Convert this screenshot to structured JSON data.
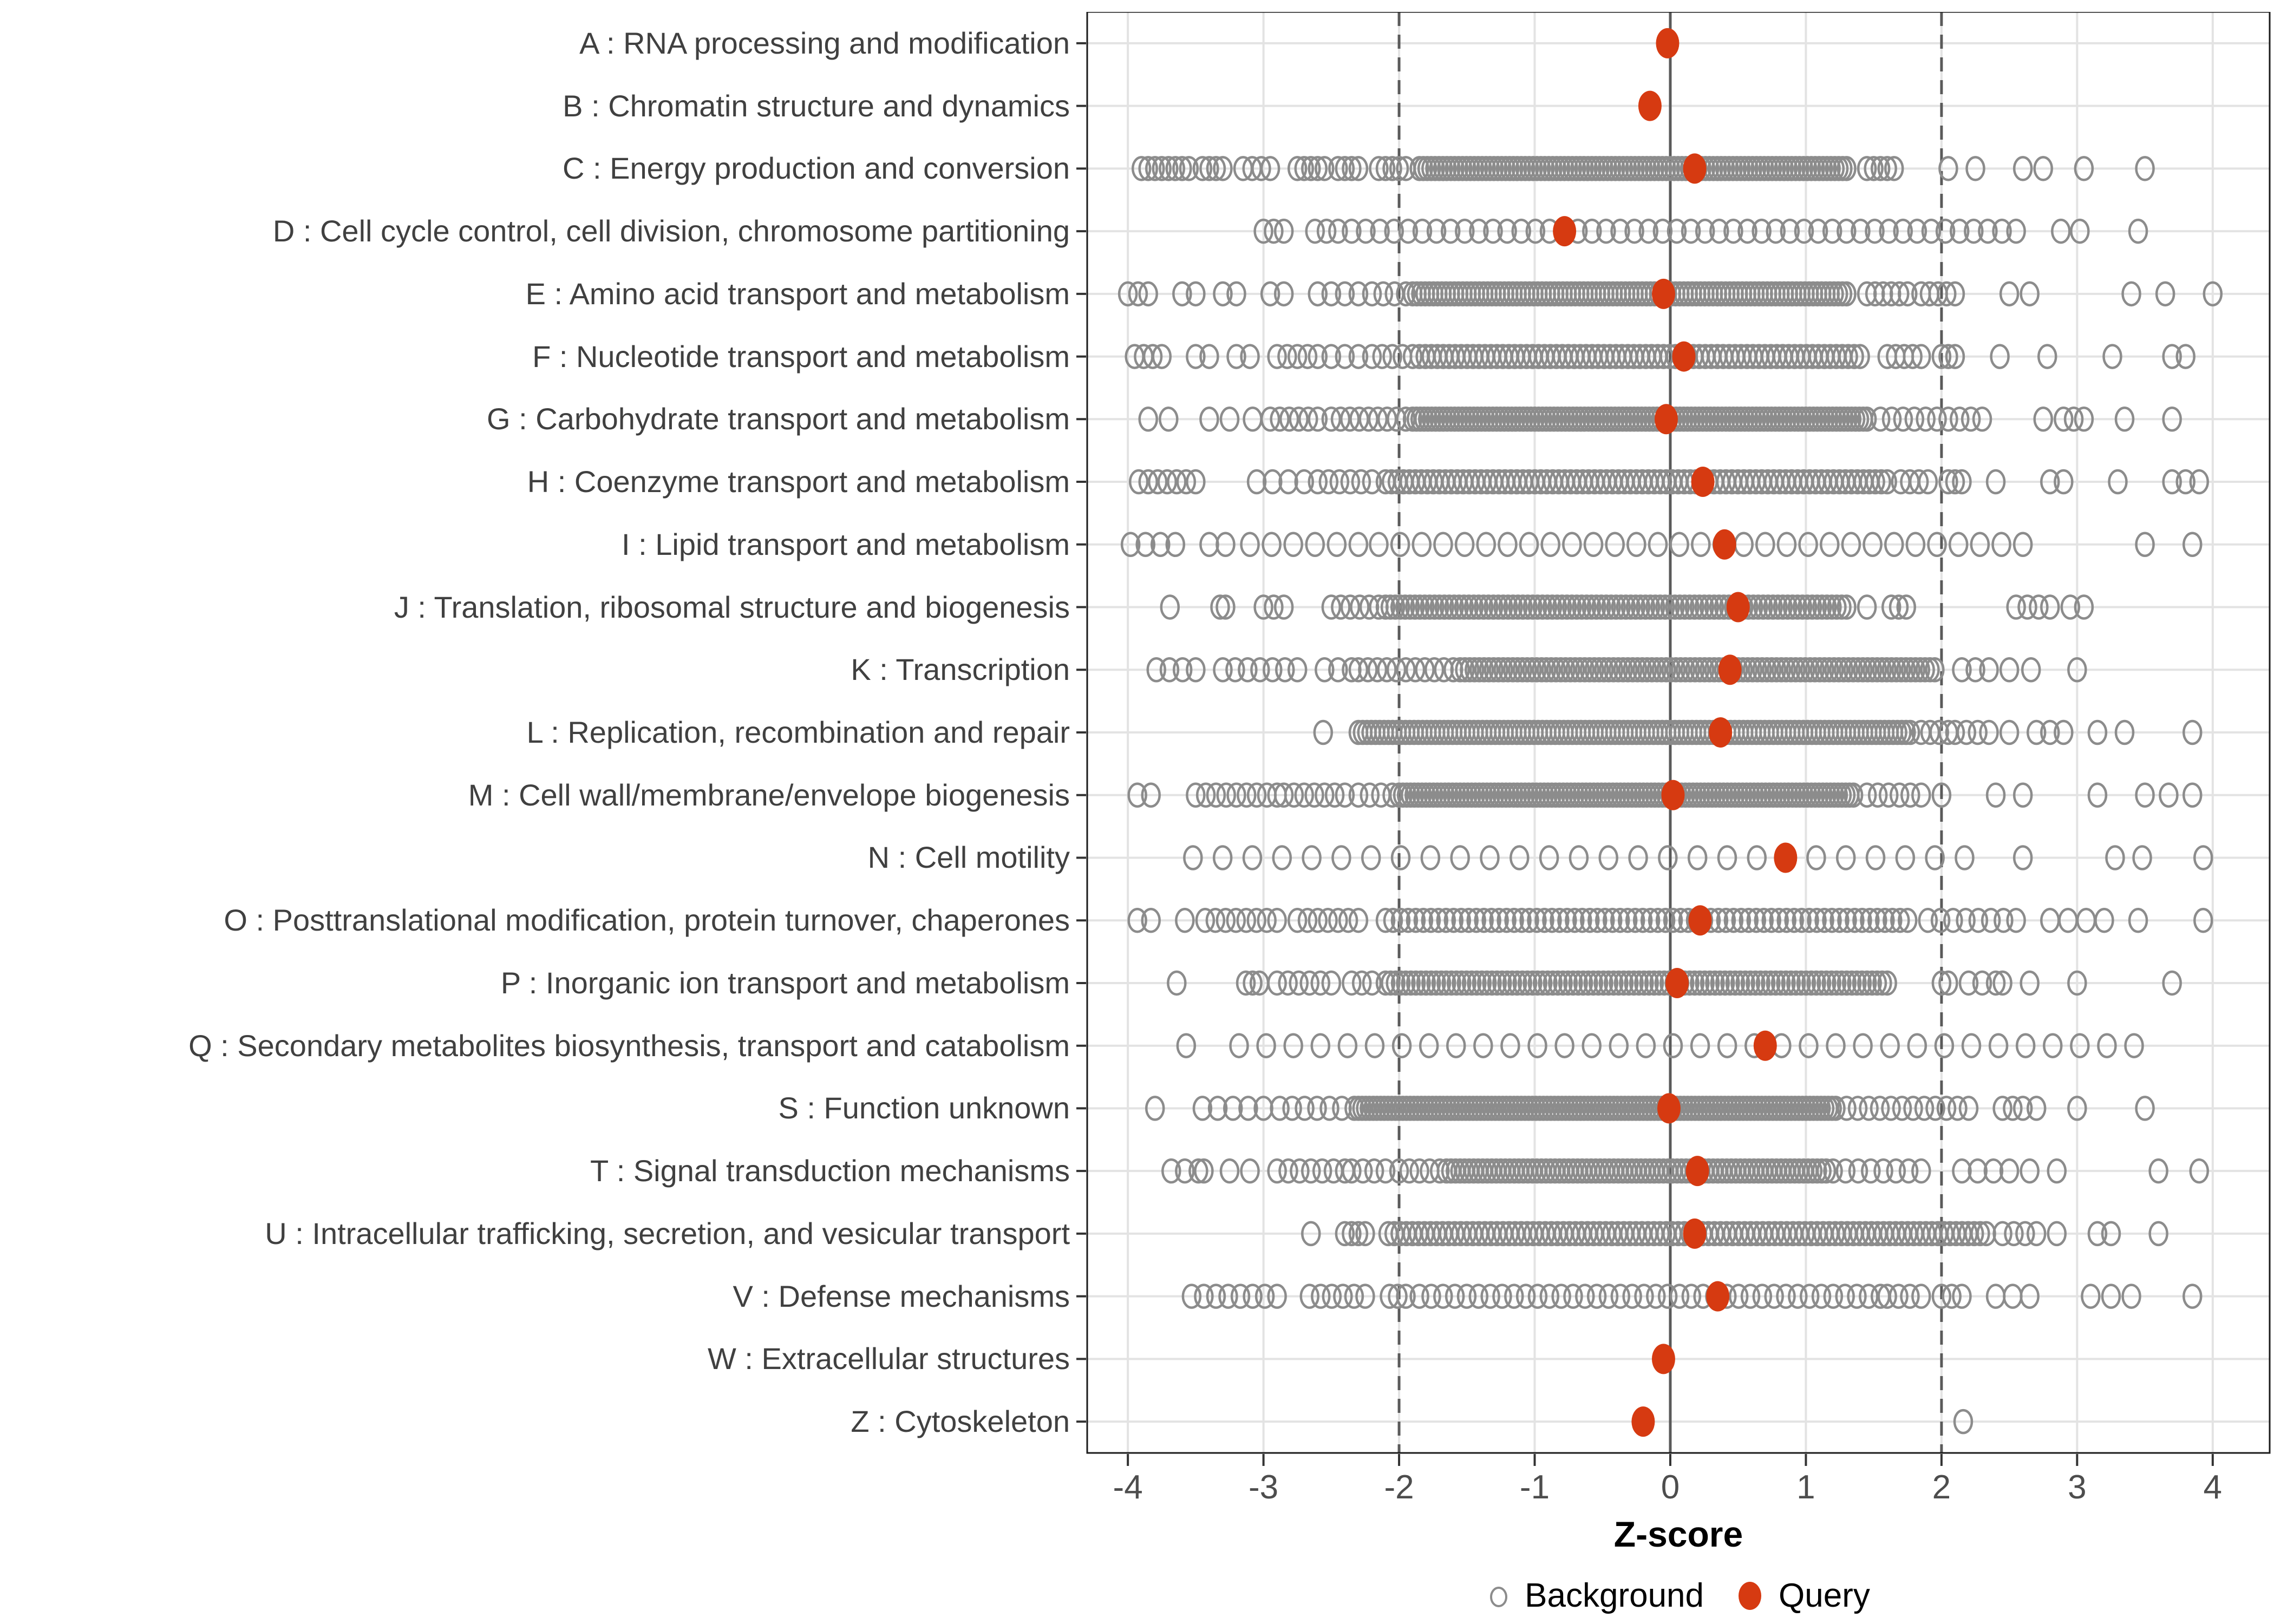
{
  "chart_data": {
    "type": "scatter",
    "title": "",
    "xlabel": "Z-score",
    "x_ticks": [
      -4,
      -3,
      -2,
      -1,
      0,
      1,
      2,
      3,
      4
    ],
    "x_range": [
      -4.3,
      4.42
    ],
    "grid": "on",
    "reference_lines": [
      {
        "x": 0,
        "style": "solid"
      },
      {
        "x": -2,
        "style": "dashed"
      },
      {
        "x": 2,
        "style": "dashed"
      }
    ],
    "legend": {
      "position": "bottom",
      "items": [
        {
          "label": "Background",
          "marker": "open-circle"
        },
        {
          "label": "Query",
          "marker": "filled-circle"
        }
      ]
    },
    "colors": {
      "query": "#D63A11",
      "background_stroke": "#8C8C8C",
      "grid": "#E3E3E3",
      "reference": "#5A5A5A",
      "axis_text": "#4D4D4D",
      "label_text": "#404040",
      "panel_border": "#1A1A1A"
    },
    "series": [
      {
        "name": "Background",
        "marker": "open-circle"
      },
      {
        "name": "Query",
        "marker": "filled-circle"
      }
    ],
    "categories": [
      {
        "label": "A : RNA processing and modification",
        "query": -0.02,
        "bg": []
      },
      {
        "label": "B : Chromatin structure and dynamics",
        "query": -0.15,
        "bg": []
      },
      {
        "label": "C : Energy production and conversion",
        "query": 0.18,
        "bg": [
          [
            -3.9,
            -3.55,
            8
          ],
          [
            -3.45,
            -3.3,
            4
          ],
          [
            -3.15,
            -2.95,
            4
          ],
          [
            -2.75,
            -2.55,
            5
          ],
          [
            -2.45,
            -2.3,
            4
          ],
          [
            -2.15,
            -1.95,
            5
          ],
          [
            -1.85,
            1.3,
            110
          ],
          [
            1.45,
            1.65,
            5
          ],
          [
            2.05,
            2.05,
            1
          ],
          [
            2.25,
            2.25,
            1
          ],
          [
            2.6,
            2.75,
            2
          ],
          [
            3.05,
            3.05,
            1
          ],
          [
            3.5,
            3.5,
            1
          ]
        ]
      },
      {
        "label": "D : Cell cycle control, cell division, chromosome partitioning",
        "query": -0.78,
        "bg": [
          [
            -3.0,
            -2.85,
            3
          ],
          [
            -2.62,
            -2.45,
            3
          ],
          [
            -2.35,
            2.55,
            48
          ],
          [
            2.88,
            2.88,
            1
          ],
          [
            3.02,
            3.02,
            1
          ],
          [
            3.45,
            3.45,
            1
          ]
        ]
      },
      {
        "label": "E : Amino acid transport and metabolism",
        "query": -0.05,
        "bg": [
          [
            -4.0,
            -3.85,
            3
          ],
          [
            -3.6,
            -3.5,
            2
          ],
          [
            -3.3,
            -3.2,
            2
          ],
          [
            -2.95,
            -2.85,
            2
          ],
          [
            -2.6,
            -2.3,
            4
          ],
          [
            -2.2,
            -1.95,
            4
          ],
          [
            -1.9,
            1.3,
            105
          ],
          [
            1.45,
            1.75,
            6
          ],
          [
            1.85,
            2.1,
            5
          ],
          [
            2.5,
            2.65,
            2
          ],
          [
            3.4,
            3.4,
            1
          ],
          [
            3.65,
            3.65,
            1
          ],
          [
            4.0,
            4.0,
            1
          ]
        ]
      },
      {
        "label": "F : Nucleotide transport and metabolism",
        "query": 0.1,
        "bg": [
          [
            -3.95,
            -3.75,
            4
          ],
          [
            -3.5,
            -3.4,
            2
          ],
          [
            -3.2,
            -3.1,
            2
          ],
          [
            -2.9,
            -2.6,
            5
          ],
          [
            -2.5,
            -2.3,
            3
          ],
          [
            -2.2,
            -1.9,
            5
          ],
          [
            -1.85,
            1.4,
            75
          ],
          [
            1.6,
            1.85,
            5
          ],
          [
            2.0,
            2.1,
            3
          ],
          [
            2.43,
            2.43,
            1
          ],
          [
            2.78,
            2.78,
            1
          ],
          [
            3.26,
            3.26,
            1
          ],
          [
            3.7,
            3.8,
            2
          ]
        ]
      },
      {
        "label": "G : Carbohydrate transport and metabolism",
        "query": -0.03,
        "bg": [
          [
            -3.85,
            -3.7,
            2
          ],
          [
            -3.4,
            -3.25,
            2
          ],
          [
            -3.08,
            -3.08,
            1
          ],
          [
            -2.95,
            -2.6,
            6
          ],
          [
            -2.5,
            -1.95,
            9
          ],
          [
            -1.9,
            1.45,
            120
          ],
          [
            1.55,
            2.3,
            10
          ],
          [
            2.75,
            2.75,
            1
          ],
          [
            2.9,
            3.05,
            3
          ],
          [
            3.35,
            3.35,
            1
          ],
          [
            3.7,
            3.7,
            1
          ]
        ]
      },
      {
        "label": "H : Coenzyme transport and metabolism",
        "query": 0.24,
        "bg": [
          [
            -3.92,
            -3.5,
            7
          ],
          [
            -3.05,
            -2.7,
            4
          ],
          [
            -2.6,
            -2.2,
            6
          ],
          [
            -2.1,
            1.6,
            85
          ],
          [
            1.7,
            1.9,
            4
          ],
          [
            2.05,
            2.15,
            3
          ],
          [
            2.4,
            2.4,
            1
          ],
          [
            2.8,
            2.9,
            2
          ],
          [
            3.3,
            3.3,
            1
          ],
          [
            3.7,
            3.9,
            3
          ]
        ]
      },
      {
        "label": "I : Lipid transport and metabolism",
        "query": 0.4,
        "bg": [
          [
            -3.98,
            -3.65,
            4
          ],
          [
            -3.4,
            -3.28,
            2
          ],
          [
            -3.1,
            -2.3,
            6
          ],
          [
            -2.15,
            2.6,
            31
          ],
          [
            3.5,
            3.5,
            1
          ],
          [
            3.85,
            3.85,
            1
          ]
        ]
      },
      {
        "label": "J : Translation, ribosomal structure and biogenesis",
        "query": 0.5,
        "bg": [
          [
            -3.69,
            -3.69,
            1
          ],
          [
            -3.32,
            -3.28,
            2
          ],
          [
            -3.0,
            -2.85,
            3
          ],
          [
            -2.5,
            -2.15,
            6
          ],
          [
            -2.1,
            1.3,
            95
          ],
          [
            1.45,
            1.45,
            1
          ],
          [
            1.63,
            1.74,
            3
          ],
          [
            2.55,
            2.8,
            4
          ],
          [
            2.95,
            3.05,
            2
          ]
        ]
      },
      {
        "label": "K : Transcription",
        "query": 0.44,
        "bg": [
          [
            -3.79,
            -3.5,
            4
          ],
          [
            -3.3,
            -2.75,
            7
          ],
          [
            -2.55,
            -2.35,
            3
          ],
          [
            -2.3,
            -1.6,
            11
          ],
          [
            -1.55,
            1.95,
            100
          ],
          [
            2.15,
            2.35,
            3
          ],
          [
            2.5,
            2.66,
            2
          ],
          [
            3.0,
            3.0,
            1
          ]
        ]
      },
      {
        "label": "L : Replication, recombination and repair",
        "query": 0.37,
        "bg": [
          [
            -2.56,
            -2.56,
            1
          ],
          [
            -2.3,
            1.77,
            130
          ],
          [
            1.85,
            2.05,
            4
          ],
          [
            2.1,
            2.35,
            4
          ],
          [
            2.5,
            2.5,
            1
          ],
          [
            2.7,
            2.9,
            3
          ],
          [
            3.15,
            3.35,
            2
          ],
          [
            3.85,
            3.85,
            1
          ]
        ]
      },
      {
        "label": "M : Cell wall/membrane/envelope biogenesis",
        "query": 0.02,
        "bg": [
          [
            -3.93,
            -3.83,
            2
          ],
          [
            -3.5,
            -2.9,
            9
          ],
          [
            -2.85,
            -2.4,
            7
          ],
          [
            -2.3,
            -2.05,
            4
          ],
          [
            -2.0,
            1.35,
            120
          ],
          [
            1.45,
            1.85,
            6
          ],
          [
            2.0,
            2.0,
            1
          ],
          [
            2.4,
            2.6,
            2
          ],
          [
            3.15,
            3.15,
            1
          ],
          [
            3.5,
            3.85,
            3
          ]
        ]
      },
      {
        "label": "N : Cell motility",
        "query": 0.85,
        "bg": [
          [
            -3.52,
            2.17,
            27
          ],
          [
            2.6,
            2.6,
            1
          ],
          [
            3.28,
            3.48,
            2
          ],
          [
            3.93,
            3.93,
            1
          ]
        ]
      },
      {
        "label": "O : Posttranslational modification, protein turnover, chaperones",
        "query": 0.22,
        "bg": [
          [
            -3.93,
            -3.83,
            2
          ],
          [
            -3.58,
            -3.58,
            1
          ],
          [
            -3.43,
            -2.9,
            8
          ],
          [
            -2.75,
            -2.3,
            7
          ],
          [
            -2.1,
            1.75,
            70
          ],
          [
            1.9,
            2.55,
            8
          ],
          [
            2.8,
            3.2,
            4
          ],
          [
            3.45,
            3.45,
            1
          ],
          [
            3.93,
            3.93,
            1
          ]
        ]
      },
      {
        "label": "P : Inorganic ion transport and metabolism",
        "query": 0.05,
        "bg": [
          [
            -3.64,
            -3.64,
            1
          ],
          [
            -3.13,
            -3.03,
            3
          ],
          [
            -2.9,
            -2.5,
            6
          ],
          [
            -2.35,
            -2.2,
            3
          ],
          [
            -2.1,
            1.6,
            100
          ],
          [
            2.0,
            2.05,
            2
          ],
          [
            2.2,
            2.3,
            2
          ],
          [
            2.4,
            2.45,
            2
          ],
          [
            2.65,
            2.65,
            1
          ],
          [
            3.0,
            3.0,
            1
          ],
          [
            3.7,
            3.7,
            1
          ]
        ]
      },
      {
        "label": "Q : Secondary metabolites biosynthesis, transport and catabolism",
        "query": 0.7,
        "bg": [
          [
            -3.57,
            -3.57,
            1
          ],
          [
            -3.18,
            3.42,
            34
          ]
        ]
      },
      {
        "label": "S : Function unknown",
        "query": -0.01,
        "bg": [
          [
            -3.8,
            -3.8,
            1
          ],
          [
            -3.45,
            -3.0,
            5
          ],
          [
            -2.88,
            -2.33,
            7
          ],
          [
            -2.3,
            1.22,
            130
          ],
          [
            1.3,
            2.2,
            12
          ],
          [
            2.45,
            2.6,
            3
          ],
          [
            2.7,
            2.7,
            1
          ],
          [
            3.0,
            3.0,
            1
          ],
          [
            3.5,
            3.5,
            1
          ]
        ]
      },
      {
        "label": "T : Signal transduction mechanisms",
        "query": 0.2,
        "bg": [
          [
            -3.68,
            -3.58,
            2
          ],
          [
            -3.48,
            -3.44,
            2
          ],
          [
            -3.25,
            -3.1,
            2
          ],
          [
            -2.9,
            -2.4,
            7
          ],
          [
            -2.35,
            -2.1,
            4
          ],
          [
            -2.0,
            -1.7,
            5
          ],
          [
            -1.65,
            1.15,
            85
          ],
          [
            1.2,
            1.85,
            8
          ],
          [
            2.15,
            2.5,
            4
          ],
          [
            2.65,
            2.85,
            2
          ],
          [
            3.6,
            3.9,
            2
          ]
        ]
      },
      {
        "label": "U : Intracellular trafficking, secretion, and vesicular transport",
        "query": 0.18,
        "bg": [
          [
            -2.65,
            -2.65,
            1
          ],
          [
            -2.4,
            -2.25,
            4
          ],
          [
            -2.08,
            2.33,
            100
          ],
          [
            2.45,
            2.7,
            4
          ],
          [
            2.85,
            2.85,
            1
          ],
          [
            3.15,
            3.25,
            2
          ],
          [
            3.6,
            3.6,
            1
          ]
        ]
      },
      {
        "label": "V : Defense mechanisms",
        "query": 0.35,
        "bg": [
          [
            -3.53,
            -3.26,
            4
          ],
          [
            -3.17,
            -2.9,
            4
          ],
          [
            -2.66,
            -2.25,
            6
          ],
          [
            -2.07,
            -1.95,
            3
          ],
          [
            -1.85,
            1.55,
            40
          ],
          [
            1.6,
            1.85,
            4
          ],
          [
            2.0,
            2.15,
            3
          ],
          [
            2.4,
            2.65,
            3
          ],
          [
            3.1,
            3.4,
            3
          ],
          [
            3.85,
            3.85,
            1
          ]
        ]
      },
      {
        "label": "W : Extracellular structures",
        "query": -0.05,
        "bg": []
      },
      {
        "label": "Z : Cytoskeleton",
        "query": -0.2,
        "bg": [
          [
            2.16,
            2.16,
            1
          ]
        ]
      }
    ]
  }
}
